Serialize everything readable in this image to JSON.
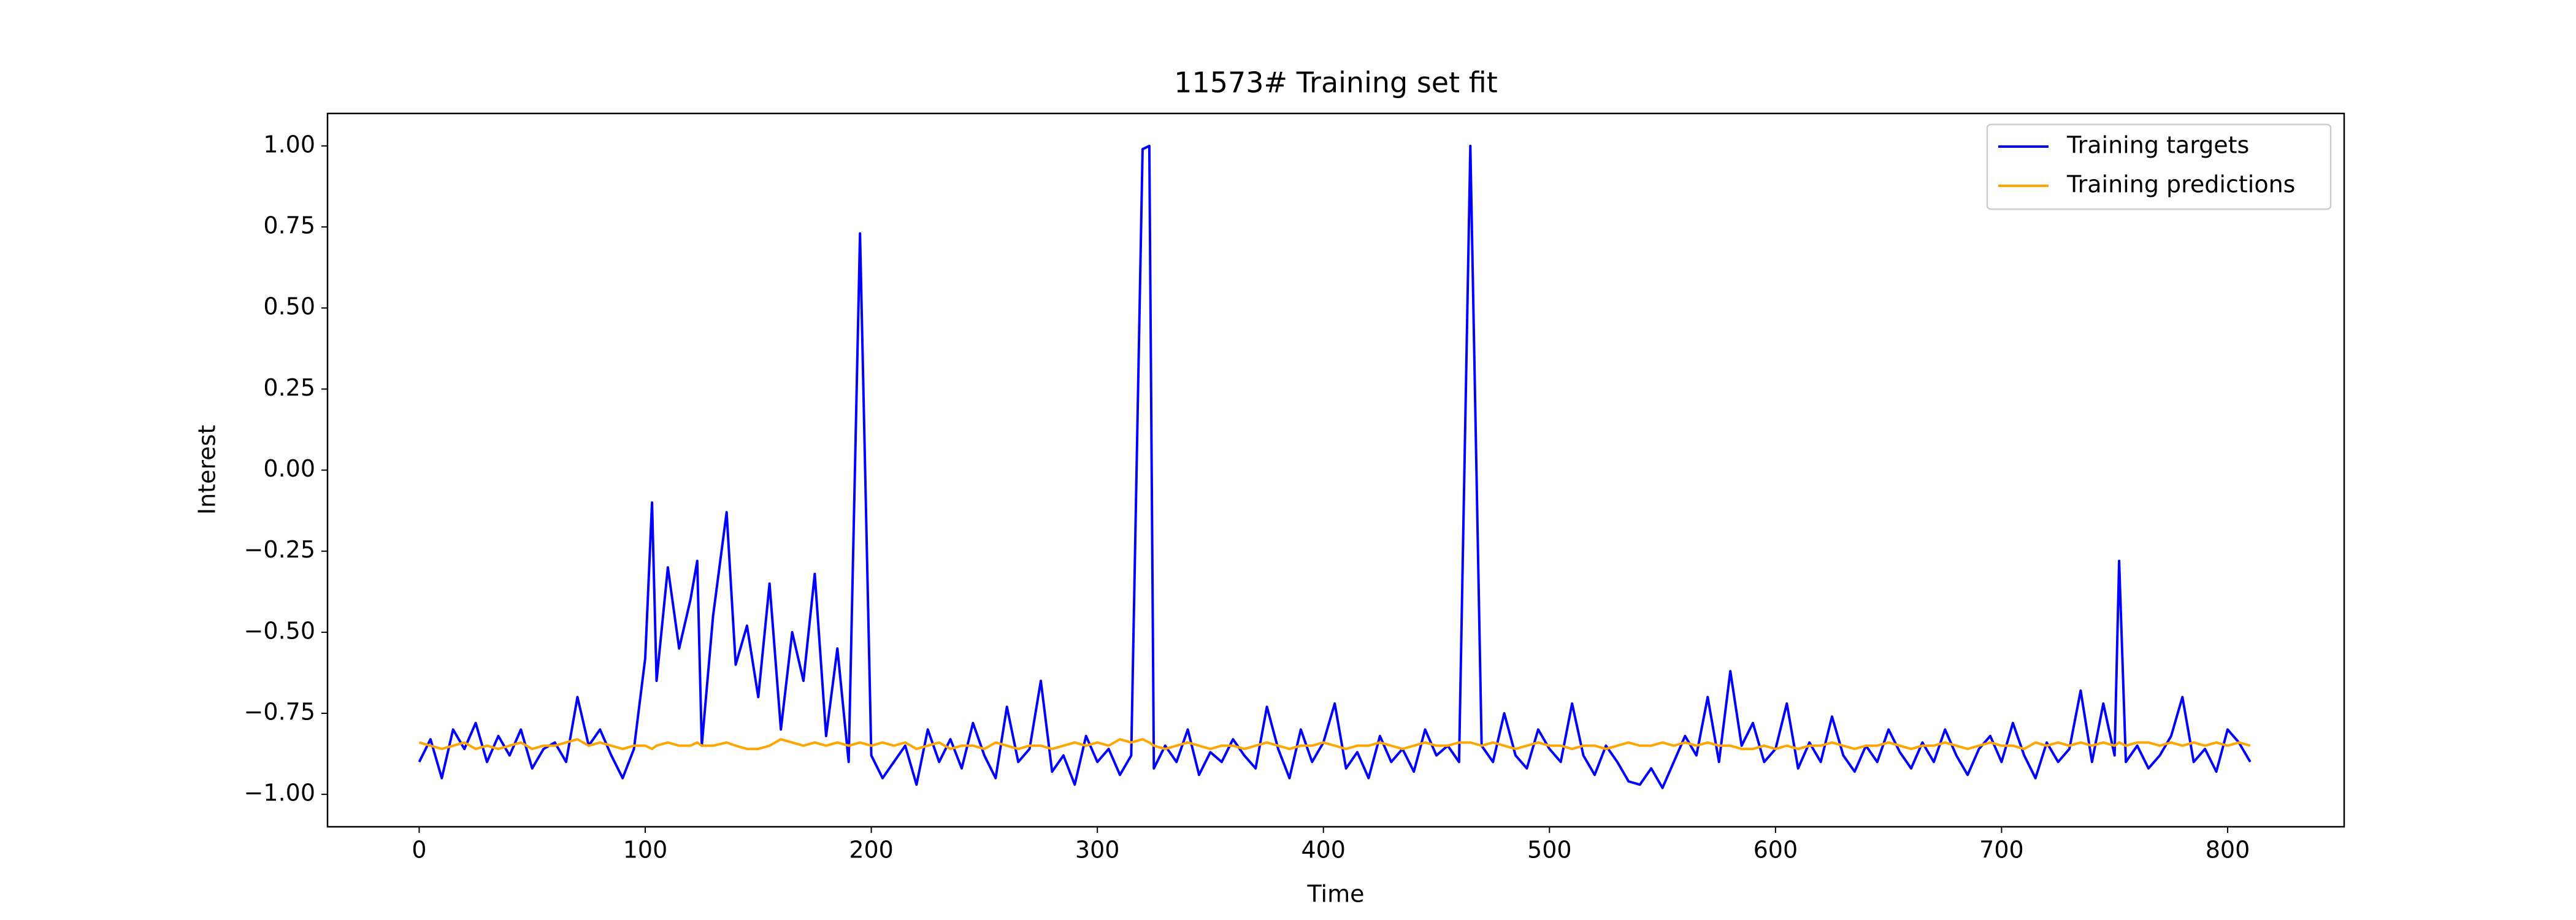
{
  "chart_data": {
    "type": "line",
    "title": "11573# Training set fit",
    "xlabel": "Time",
    "ylabel": "Interest",
    "x": [
      0,
      5,
      10,
      15,
      20,
      25,
      30,
      35,
      40,
      45,
      50,
      55,
      60,
      65,
      70,
      75,
      80,
      85,
      90,
      95,
      100,
      103,
      105,
      110,
      115,
      120,
      123,
      125,
      130,
      136,
      140,
      145,
      150,
      155,
      160,
      165,
      170,
      175,
      180,
      185,
      190,
      195,
      200,
      205,
      210,
      215,
      220,
      225,
      230,
      235,
      240,
      245,
      250,
      255,
      260,
      265,
      270,
      275,
      280,
      285,
      290,
      295,
      300,
      305,
      310,
      315,
      320,
      323,
      325,
      330,
      335,
      340,
      345,
      350,
      355,
      360,
      365,
      370,
      375,
      380,
      385,
      390,
      395,
      400,
      405,
      410,
      415,
      420,
      425,
      430,
      435,
      440,
      445,
      450,
      455,
      460,
      465,
      470,
      475,
      480,
      485,
      490,
      495,
      500,
      505,
      510,
      515,
      520,
      525,
      530,
      535,
      540,
      545,
      550,
      555,
      560,
      565,
      570,
      575,
      580,
      585,
      590,
      595,
      600,
      605,
      610,
      615,
      620,
      625,
      630,
      635,
      640,
      645,
      650,
      655,
      660,
      665,
      670,
      675,
      680,
      685,
      690,
      695,
      700,
      705,
      710,
      715,
      720,
      725,
      730,
      735,
      740,
      745,
      750,
      752,
      755,
      760,
      765,
      770,
      775,
      780,
      785,
      790,
      795,
      800,
      805,
      810
    ],
    "series": [
      {
        "name": "Training targets",
        "color": "#0000ff",
        "values": [
          -0.9,
          -0.83,
          -0.95,
          -0.8,
          -0.86,
          -0.78,
          -0.9,
          -0.82,
          -0.88,
          -0.8,
          -0.92,
          -0.86,
          -0.84,
          -0.9,
          -0.7,
          -0.85,
          -0.8,
          -0.88,
          -0.95,
          -0.86,
          -0.58,
          -0.1,
          -0.65,
          -0.3,
          -0.55,
          -0.4,
          -0.28,
          -0.85,
          -0.45,
          -0.13,
          -0.6,
          -0.48,
          -0.7,
          -0.35,
          -0.8,
          -0.5,
          -0.65,
          -0.32,
          -0.82,
          -0.55,
          -0.9,
          0.73,
          -0.88,
          -0.95,
          -0.9,
          -0.85,
          -0.97,
          -0.8,
          -0.9,
          -0.83,
          -0.92,
          -0.78,
          -0.88,
          -0.95,
          -0.73,
          -0.9,
          -0.86,
          -0.65,
          -0.93,
          -0.88,
          -0.97,
          -0.82,
          -0.9,
          -0.86,
          -0.94,
          -0.88,
          0.99,
          1.0,
          -0.92,
          -0.85,
          -0.9,
          -0.8,
          -0.94,
          -0.87,
          -0.9,
          -0.83,
          -0.88,
          -0.92,
          -0.73,
          -0.86,
          -0.95,
          -0.8,
          -0.9,
          -0.84,
          -0.72,
          -0.92,
          -0.87,
          -0.95,
          -0.82,
          -0.9,
          -0.86,
          -0.93,
          -0.8,
          -0.88,
          -0.85,
          -0.9,
          1.0,
          -0.85,
          -0.9,
          -0.75,
          -0.88,
          -0.92,
          -0.8,
          -0.86,
          -0.9,
          -0.72,
          -0.88,
          -0.94,
          -0.85,
          -0.9,
          -0.96,
          -0.97,
          -0.92,
          -0.98,
          -0.9,
          -0.82,
          -0.88,
          -0.7,
          -0.9,
          -0.62,
          -0.85,
          -0.78,
          -0.9,
          -0.86,
          -0.72,
          -0.92,
          -0.84,
          -0.9,
          -0.76,
          -0.88,
          -0.93,
          -0.85,
          -0.9,
          -0.8,
          -0.87,
          -0.92,
          -0.84,
          -0.9,
          -0.8,
          -0.88,
          -0.94,
          -0.86,
          -0.82,
          -0.9,
          -0.78,
          -0.88,
          -0.95,
          -0.84,
          -0.9,
          -0.86,
          -0.68,
          -0.9,
          -0.72,
          -0.88,
          -0.28,
          -0.9,
          -0.85,
          -0.92,
          -0.88,
          -0.82,
          -0.7,
          -0.9,
          -0.86,
          -0.93,
          -0.8,
          -0.84,
          -0.9
        ]
      },
      {
        "name": "Training predictions",
        "color": "#ffa500",
        "values": [
          -0.84,
          -0.85,
          -0.86,
          -0.85,
          -0.84,
          -0.86,
          -0.85,
          -0.86,
          -0.85,
          -0.84,
          -0.86,
          -0.85,
          -0.85,
          -0.84,
          -0.83,
          -0.85,
          -0.84,
          -0.85,
          -0.86,
          -0.85,
          -0.85,
          -0.86,
          -0.85,
          -0.84,
          -0.85,
          -0.85,
          -0.84,
          -0.85,
          -0.85,
          -0.84,
          -0.85,
          -0.86,
          -0.86,
          -0.85,
          -0.83,
          -0.84,
          -0.85,
          -0.84,
          -0.85,
          -0.84,
          -0.85,
          -0.84,
          -0.85,
          -0.84,
          -0.85,
          -0.84,
          -0.86,
          -0.85,
          -0.84,
          -0.86,
          -0.85,
          -0.85,
          -0.86,
          -0.84,
          -0.85,
          -0.86,
          -0.85,
          -0.85,
          -0.86,
          -0.85,
          -0.84,
          -0.85,
          -0.84,
          -0.85,
          -0.83,
          -0.84,
          -0.83,
          -0.84,
          -0.85,
          -0.86,
          -0.85,
          -0.84,
          -0.85,
          -0.86,
          -0.85,
          -0.85,
          -0.86,
          -0.85,
          -0.84,
          -0.85,
          -0.86,
          -0.85,
          -0.85,
          -0.84,
          -0.85,
          -0.86,
          -0.85,
          -0.85,
          -0.84,
          -0.85,
          -0.86,
          -0.85,
          -0.84,
          -0.85,
          -0.85,
          -0.84,
          -0.84,
          -0.85,
          -0.84,
          -0.85,
          -0.86,
          -0.85,
          -0.84,
          -0.85,
          -0.85,
          -0.86,
          -0.85,
          -0.85,
          -0.86,
          -0.85,
          -0.84,
          -0.85,
          -0.85,
          -0.84,
          -0.85,
          -0.84,
          -0.85,
          -0.84,
          -0.85,
          -0.85,
          -0.86,
          -0.86,
          -0.85,
          -0.86,
          -0.85,
          -0.86,
          -0.85,
          -0.85,
          -0.84,
          -0.85,
          -0.86,
          -0.85,
          -0.85,
          -0.84,
          -0.85,
          -0.86,
          -0.85,
          -0.85,
          -0.84,
          -0.85,
          -0.86,
          -0.85,
          -0.84,
          -0.85,
          -0.85,
          -0.86,
          -0.84,
          -0.85,
          -0.84,
          -0.85,
          -0.84,
          -0.85,
          -0.84,
          -0.85,
          -0.84,
          -0.85,
          -0.84,
          -0.84,
          -0.85,
          -0.84,
          -0.85,
          -0.84,
          -0.85,
          -0.84,
          -0.85,
          -0.84,
          -0.85
        ]
      }
    ],
    "xlim": [
      -40.55,
      851.55
    ],
    "xticks": [
      0,
      100,
      200,
      300,
      400,
      500,
      600,
      700,
      800
    ],
    "ylim": [
      -1.1,
      1.1
    ],
    "yticks": [
      {
        "value": -1.0,
        "label": "−1.00"
      },
      {
        "value": -0.75,
        "label": "−0.75"
      },
      {
        "value": -0.5,
        "label": "−0.50"
      },
      {
        "value": -0.25,
        "label": "−0.25"
      },
      {
        "value": 0.0,
        "label": "0.00"
      },
      {
        "value": 0.25,
        "label": "0.25"
      },
      {
        "value": 0.5,
        "label": "0.50"
      },
      {
        "value": 0.75,
        "label": "0.75"
      },
      {
        "value": 1.0,
        "label": "1.00"
      }
    ],
    "legend": "upper right"
  }
}
